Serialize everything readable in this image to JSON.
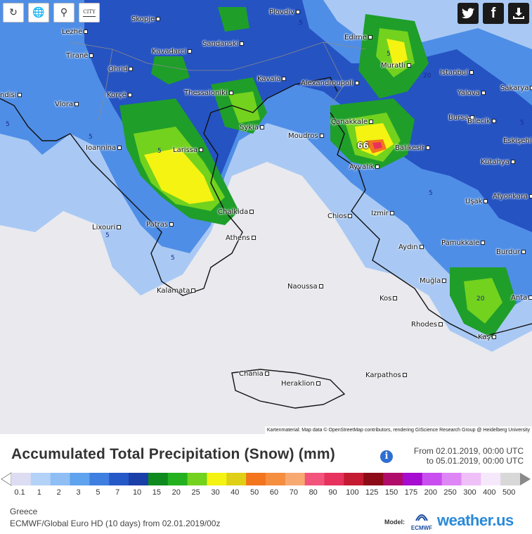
{
  "toolbar": {
    "refresh_icon": "refresh-icon",
    "globe_icon": "globe-icon",
    "zoom_out_icon": "zoom-out-icon",
    "city_toggle_label": "CITY"
  },
  "social": {
    "twitter_icon": "twitter-icon",
    "facebook_icon": "facebook-icon",
    "download_icon": "download-icon"
  },
  "cities": [
    {
      "name": "Skopje"
    },
    {
      "name": "Plovdiv"
    },
    {
      "name": "Lezhë"
    },
    {
      "name": "Edirne"
    },
    {
      "name": "Kavadarci"
    },
    {
      "name": "Sandanski"
    },
    {
      "name": "Tiranë"
    },
    {
      "name": "Muratlı"
    },
    {
      "name": "Ohrid"
    },
    {
      "name": "Kavala"
    },
    {
      "name": "Alexandroupoli"
    },
    {
      "name": "Istanbul"
    },
    {
      "name": "Korçë"
    },
    {
      "name": "Thessaloniki"
    },
    {
      "name": "Yalova"
    },
    {
      "name": "Sakarya"
    },
    {
      "name": "ndisi"
    },
    {
      "name": "Vlora"
    },
    {
      "name": "Çanakkale"
    },
    {
      "name": "Bursa"
    },
    {
      "name": "Bilecik"
    },
    {
      "name": "Sykia"
    },
    {
      "name": "Moudros"
    },
    {
      "name": "Balıkesir"
    },
    {
      "name": "Eskişehi"
    },
    {
      "name": "Ioannina"
    },
    {
      "name": "Larissa"
    },
    {
      "name": "Kütahya"
    },
    {
      "name": "Ayvalık"
    },
    {
      "name": "Uşak"
    },
    {
      "name": "Afyonkara"
    },
    {
      "name": "Chalkida"
    },
    {
      "name": "Chios"
    },
    {
      "name": "Izmir"
    },
    {
      "name": "Lixouri"
    },
    {
      "name": "Patras"
    },
    {
      "name": "Athens"
    },
    {
      "name": "Pamukkale"
    },
    {
      "name": "Aydın"
    },
    {
      "name": "Burdur"
    },
    {
      "name": "Kalamata"
    },
    {
      "name": "Muğla"
    },
    {
      "name": "Naoussa"
    },
    {
      "name": "Anta"
    },
    {
      "name": "Kos"
    },
    {
      "name": "Rhodes"
    },
    {
      "name": "Kaş"
    },
    {
      "name": "Chania"
    },
    {
      "name": "Heraklion"
    },
    {
      "name": "Karpathos"
    }
  ],
  "contour_labels": [
    "5",
    "5",
    "5",
    "5",
    "5",
    "20",
    "5",
    "5",
    "20",
    "5",
    "5"
  ],
  "max_value_label": "66",
  "attribution": "Kartenmaterial: Map data © OpenStreetMap contributors, rendering GIScience Research Group @ Heidelberg University",
  "legend": {
    "title": "Accumulated Total Precipitation (Snow) (mm)",
    "info_icon": "i",
    "time_from": "From 02.01.2019, 00:00 UTC",
    "time_to": "to 05.01.2019, 00:00 UTC",
    "steps": [
      {
        "label": "0.1",
        "color": "#dcdcf2"
      },
      {
        "label": "1",
        "color": "#b4d2f7"
      },
      {
        "label": "2",
        "color": "#8fbef5"
      },
      {
        "label": "3",
        "color": "#5fa2ee"
      },
      {
        "label": "5",
        "color": "#3f7fe0"
      },
      {
        "label": "7",
        "color": "#2659c8"
      },
      {
        "label": "10",
        "color": "#1a3fa8"
      },
      {
        "label": "15",
        "color": "#0e8a1e"
      },
      {
        "label": "20",
        "color": "#23b11f"
      },
      {
        "label": "25",
        "color": "#72d21e"
      },
      {
        "label": "30",
        "color": "#f4f312"
      },
      {
        "label": "40",
        "color": "#dfcf16"
      },
      {
        "label": "50",
        "color": "#f3751d"
      },
      {
        "label": "60",
        "color": "#f58e3f"
      },
      {
        "label": "70",
        "color": "#f7a971"
      },
      {
        "label": "80",
        "color": "#f2547b"
      },
      {
        "label": "90",
        "color": "#e6325c"
      },
      {
        "label": "100",
        "color": "#c41b32"
      },
      {
        "label": "125",
        "color": "#8c0b17"
      },
      {
        "label": "150",
        "color": "#b00d6a"
      },
      {
        "label": "175",
        "color": "#a60dd0"
      },
      {
        "label": "200",
        "color": "#c94ef0"
      },
      {
        "label": "250",
        "color": "#de86f5"
      },
      {
        "label": "300",
        "color": "#efbff8"
      },
      {
        "label": "400",
        "color": "#f6e8fb"
      },
      {
        "label": "500",
        "color": "#d8d8d8"
      }
    ]
  },
  "footer": {
    "region": "Greece",
    "model_run": "ECMWF/Global Euro HD (10 days) from 02.01.2019/00z",
    "model_label": "Model:",
    "model_logo_text": "ECMWF",
    "brand": "weather.us"
  }
}
